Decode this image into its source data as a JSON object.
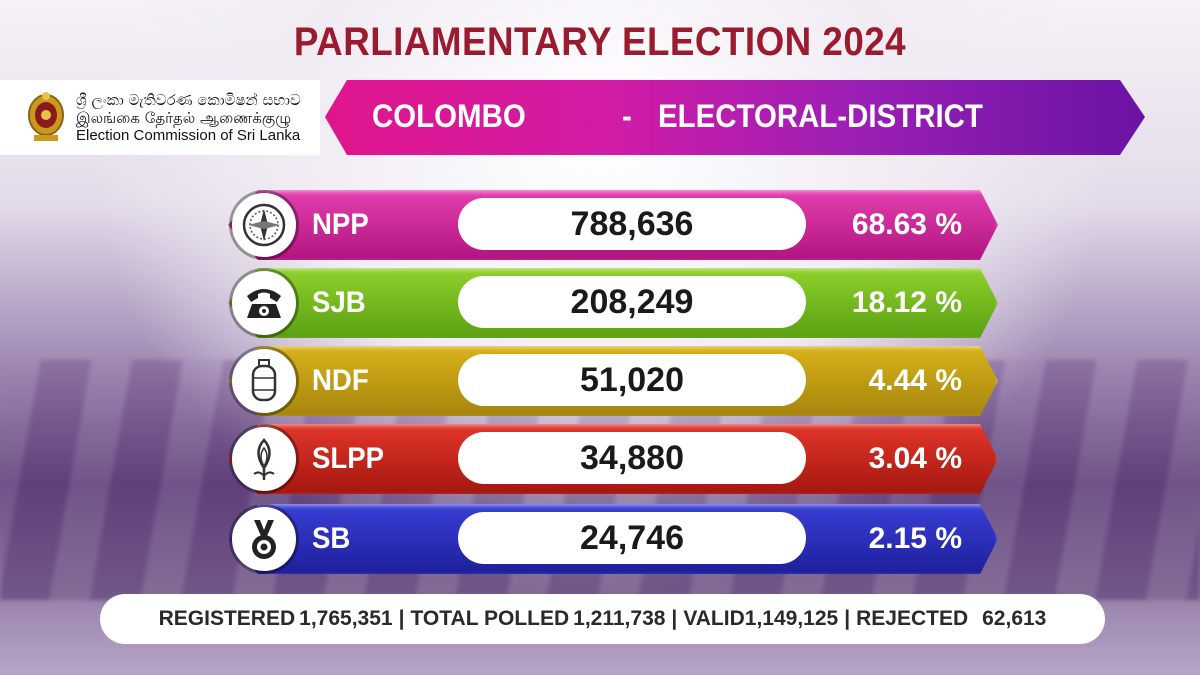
{
  "title": "PARLIAMENTARY ELECTION 2024",
  "commission": {
    "sinhala": "ශ්‍රී ලංකා මැතිවරණ කොමිෂන් සභාව",
    "tamil": "இலங்கை தேர்தல் ஆணைக்குழு",
    "english": "Election Commission of Sri Lanka"
  },
  "district": {
    "name": "COLOMBO",
    "dash": "-",
    "type": "ELECTORAL-DISTRICT"
  },
  "results": [
    {
      "party": "NPP",
      "votes": "788,636",
      "percent": "68.63 %",
      "color_left": "#e53fb0",
      "color_right": "#b0157f",
      "symbol": "compass-icon"
    },
    {
      "party": "SJB",
      "votes": "208,249",
      "percent": "18.12 %",
      "color_left": "#8fd12c",
      "color_right": "#5aa012",
      "symbol": "telephone-icon"
    },
    {
      "party": "NDF",
      "votes": "51,020",
      "percent": "4.44 %",
      "color_left": "#d8b21a",
      "color_right": "#a6850c",
      "symbol": "gas-cylinder-icon"
    },
    {
      "party": "SLPP",
      "votes": "34,880",
      "percent": "3.04 %",
      "color_left": "#e2362a",
      "color_right": "#a4170f",
      "symbol": "lotus-bud-icon"
    },
    {
      "party": "SB",
      "votes": "24,746",
      "percent": "2.15 %",
      "color_left": "#3a3fd8",
      "color_right": "#1d1f9a",
      "symbol": "medal-icon"
    }
  ],
  "summary": {
    "registered_label": "REGISTERED",
    "registered": "1,765,351",
    "polled_label": "TOTAL POLLED",
    "polled": "1,211,738",
    "valid_label": "VALID",
    "valid": "1,149,125",
    "rejected_label": "REJECTED",
    "rejected": "62,613",
    "separator": "|"
  }
}
